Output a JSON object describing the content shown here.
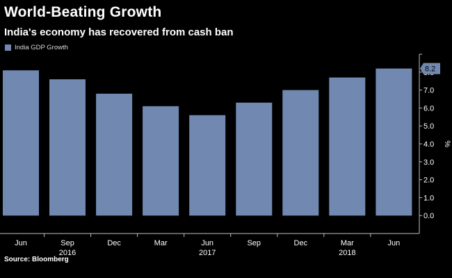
{
  "chart_data": {
    "type": "bar",
    "title": "World-Beating Growth",
    "subtitle": "India's economy has recovered from cash ban",
    "legend": [
      "India GDP Growth"
    ],
    "ylabel": "%",
    "ylim": [
      -1,
      9
    ],
    "yticks": [
      0.0,
      1.0,
      2.0,
      3.0,
      4.0,
      5.0,
      6.0,
      7.0,
      8.0
    ],
    "ytick_labels": [
      "0.0",
      "1.0",
      "2.0",
      "3.0",
      "4.0",
      "5.0",
      "6.0",
      "7.0",
      "8.0"
    ],
    "categories": [
      "Jun",
      "Sep",
      "Dec",
      "Mar",
      "Jun",
      "Sep",
      "Dec",
      "Mar",
      "Jun"
    ],
    "year_labels": [
      {
        "label": "2016",
        "category_index": 1
      },
      {
        "label": "2017",
        "category_index": 4
      },
      {
        "label": "2018",
        "category_index": 7
      }
    ],
    "series": [
      {
        "name": "India GDP Growth",
        "values": [
          8.1,
          7.6,
          6.8,
          6.1,
          5.6,
          6.3,
          7.0,
          7.7,
          8.2
        ]
      }
    ],
    "last_value_label": "8.2",
    "bar_color": "#7189b0",
    "flag_color": "#7189b0",
    "source": "Source: Bloomberg"
  }
}
